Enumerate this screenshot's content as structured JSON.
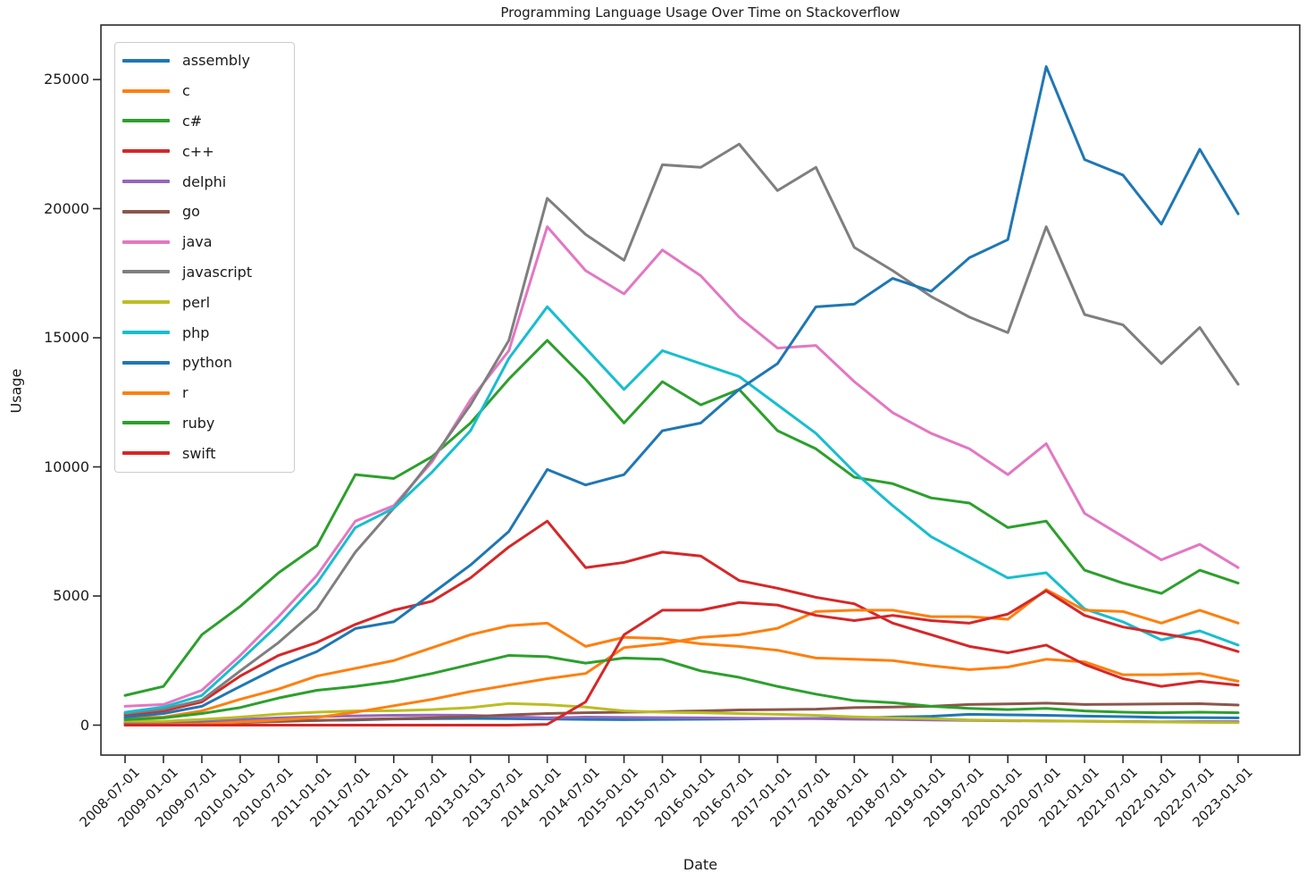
{
  "chart_data": {
    "type": "line",
    "title": "Programming Language Usage Over Time on Stackoverflow",
    "xlabel": "Date",
    "ylabel": "Usage",
    "grid": false,
    "legend_position": "upper left",
    "y_ticks": [
      0,
      5000,
      10000,
      15000,
      20000,
      25000
    ],
    "ylim": [
      0,
      26500
    ],
    "x_tick_labels": [
      "2008-07-01",
      "2009-01-01",
      "2009-07-01",
      "2010-01-01",
      "2010-07-01",
      "2011-01-01",
      "2011-07-01",
      "2012-01-01",
      "2012-07-01",
      "2013-01-01",
      "2013-07-01",
      "2014-01-01",
      "2014-07-01",
      "2015-01-01",
      "2015-07-01",
      "2016-01-01",
      "2016-07-01",
      "2017-01-01",
      "2017-07-01",
      "2018-01-01",
      "2018-07-01",
      "2019-01-01",
      "2019-07-01",
      "2020-01-01",
      "2020-07-01",
      "2021-01-01",
      "2021-07-01",
      "2022-01-01",
      "2022-07-01",
      "2023-01-01"
    ],
    "series": [
      {
        "name": "assembly",
        "color": "#1f77b4",
        "values": [
          80,
          100,
          120,
          140,
          160,
          180,
          200,
          240,
          250,
          260,
          250,
          240,
          220,
          210,
          220,
          230,
          240,
          250,
          260,
          280,
          310,
          340,
          420,
          400,
          380,
          350,
          330,
          300,
          290,
          280
        ]
      },
      {
        "name": "c",
        "color": "#ff7f0e",
        "values": [
          280,
          310,
          550,
          1000,
          1400,
          1900,
          2200,
          2500,
          3000,
          3500,
          3850,
          3950,
          3050,
          3400,
          3350,
          3150,
          3050,
          2900,
          2600,
          2550,
          2500,
          2300,
          2150,
          2250,
          2550,
          2450,
          1950,
          1950,
          2000,
          1700
        ]
      },
      {
        "name": "c#",
        "color": "#2ca02c",
        "values": [
          1150,
          1500,
          3500,
          4600,
          5900,
          6950,
          9700,
          9550,
          10400,
          11700,
          13400,
          14900,
          13400,
          11700,
          13300,
          12400,
          13000,
          11400,
          10700,
          9600,
          9350,
          8800,
          8600,
          7650,
          7900,
          6000,
          5500,
          5100,
          6000,
          5500
        ]
      },
      {
        "name": "c++",
        "color": "#d62728",
        "values": [
          400,
          550,
          900,
          1900,
          2700,
          3200,
          3900,
          4450,
          4800,
          5700,
          6900,
          7900,
          6100,
          6300,
          6700,
          6550,
          5600,
          5300,
          4950,
          4700,
          3950,
          3500,
          3050,
          2800,
          3100,
          2350,
          1800,
          1500,
          1700,
          1550
        ]
      },
      {
        "name": "delphi",
        "color": "#9467bd",
        "values": [
          100,
          130,
          180,
          220,
          280,
          330,
          360,
          380,
          390,
          380,
          330,
          280,
          310,
          300,
          290,
          280,
          270,
          260,
          250,
          230,
          220,
          200,
          180,
          170,
          160,
          150,
          140,
          130,
          140,
          140
        ]
      },
      {
        "name": "go",
        "color": "#8c564b",
        "values": [
          20,
          30,
          60,
          100,
          140,
          180,
          220,
          250,
          280,
          330,
          400,
          450,
          480,
          500,
          520,
          550,
          590,
          600,
          620,
          680,
          700,
          730,
          800,
          820,
          850,
          800,
          810,
          820,
          830,
          780
        ]
      },
      {
        "name": "java",
        "color": "#e377c2",
        "values": [
          730,
          800,
          1350,
          2700,
          4200,
          5800,
          7900,
          8500,
          10200,
          12600,
          14500,
          19300,
          17600,
          16700,
          18400,
          17400,
          15800,
          14600,
          14700,
          13300,
          12100,
          11300,
          10700,
          9700,
          10900,
          8200,
          7300,
          6400,
          7000,
          6100
        ]
      },
      {
        "name": "javascript",
        "color": "#7f7f7f",
        "values": [
          450,
          620,
          970,
          2100,
          3200,
          4500,
          6700,
          8400,
          10300,
          12400,
          14900,
          20400,
          19000,
          18000,
          21700,
          21600,
          22500,
          20700,
          21600,
          18500,
          17600,
          16600,
          15800,
          15200,
          19300,
          15900,
          15500,
          14000,
          15400,
          13200
        ]
      },
      {
        "name": "perl",
        "color": "#bcbd22",
        "values": [
          150,
          150,
          220,
          310,
          430,
          500,
          550,
          560,
          600,
          680,
          840,
          790,
          700,
          550,
          500,
          480,
          450,
          420,
          380,
          320,
          280,
          250,
          200,
          180,
          170,
          150,
          130,
          120,
          110,
          100
        ]
      },
      {
        "name": "php",
        "color": "#17becf",
        "values": [
          500,
          700,
          1150,
          2500,
          3900,
          5500,
          7650,
          8400,
          9800,
          11400,
          14200,
          16200,
          14600,
          13000,
          14500,
          14000,
          13500,
          12400,
          11300,
          9800,
          8500,
          7300,
          6500,
          5700,
          5900,
          4500,
          4000,
          3300,
          3650,
          3100
        ]
      },
      {
        "name": "python",
        "color": "#1f77b4",
        "values": [
          310,
          450,
          730,
          1500,
          2250,
          2850,
          3740,
          4000,
          5100,
          6200,
          7500,
          9900,
          9300,
          9700,
          11400,
          11700,
          13000,
          14000,
          16200,
          16300,
          17300,
          16800,
          18100,
          18800,
          25500,
          21900,
          21300,
          19400,
          22300,
          19800
        ]
      },
      {
        "name": "r",
        "color": "#ff7f0e",
        "values": [
          10,
          20,
          50,
          120,
          200,
          300,
          500,
          750,
          1000,
          1300,
          1550,
          1800,
          2000,
          3000,
          3150,
          3400,
          3500,
          3750,
          4400,
          4450,
          4450,
          4200,
          4200,
          4100,
          5250,
          4450,
          4400,
          3950,
          4450,
          3950
        ]
      },
      {
        "name": "ruby",
        "color": "#2ca02c",
        "values": [
          210,
          280,
          450,
          680,
          1050,
          1350,
          1500,
          1700,
          2000,
          2350,
          2700,
          2650,
          2400,
          2600,
          2550,
          2100,
          1850,
          1500,
          1200,
          950,
          870,
          730,
          650,
          600,
          650,
          550,
          500,
          480,
          500,
          480
        ]
      },
      {
        "name": "swift",
        "color": "#d62728",
        "values": [
          0,
          0,
          0,
          0,
          0,
          0,
          0,
          0,
          0,
          0,
          0,
          30,
          900,
          3500,
          4450,
          4450,
          4750,
          4650,
          4250,
          4050,
          4250,
          4050,
          3950,
          4300,
          5200,
          4250,
          3800,
          3550,
          3300,
          2850
        ]
      }
    ]
  }
}
